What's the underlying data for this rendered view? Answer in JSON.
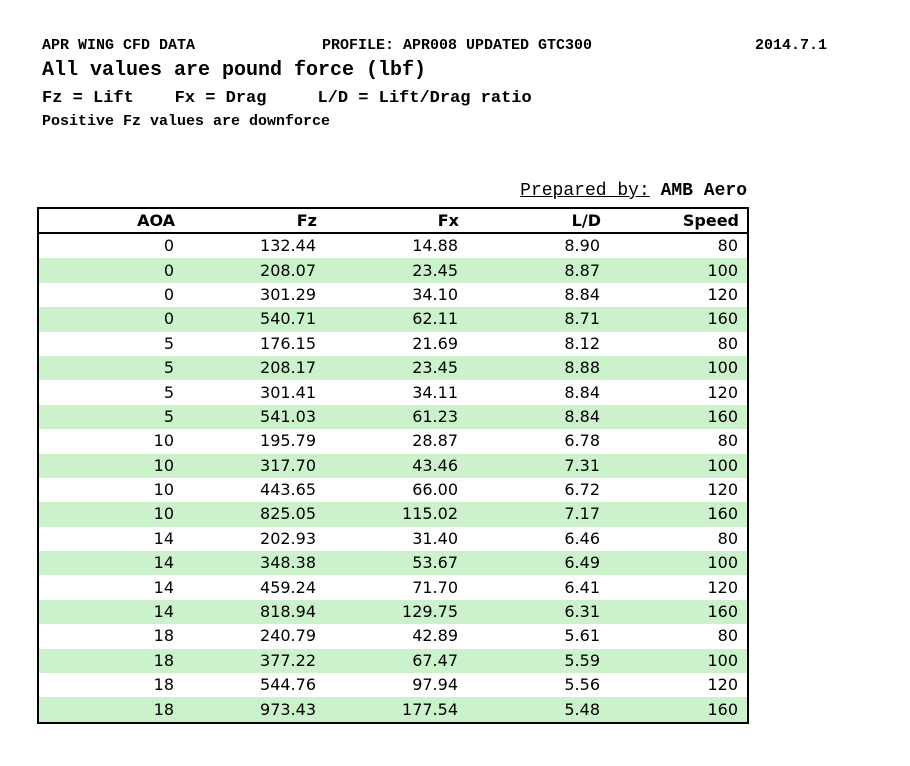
{
  "header": {
    "line1_left": "APR WING CFD DATA",
    "line1_mid": "PROFILE: APR008 UPDATED GTC300",
    "line1_right": "2014.7.1",
    "line2": "All values are pound force (lbf)",
    "line3": "Fz = Lift    Fx = Drag     L/D = Lift/Drag ratio",
    "line4": "Positive Fz values are downforce"
  },
  "prepared_by": {
    "label": "Prepared by:",
    "value": "AMB Aero"
  },
  "table": {
    "columns": [
      "AOA",
      "Fz",
      "Fx",
      "L/D",
      "Speed"
    ],
    "rows": [
      [
        "0",
        "132.44",
        "14.88",
        "8.90",
        "80"
      ],
      [
        "0",
        "208.07",
        "23.45",
        "8.87",
        "100"
      ],
      [
        "0",
        "301.29",
        "34.10",
        "8.84",
        "120"
      ],
      [
        "0",
        "540.71",
        "62.11",
        "8.71",
        "160"
      ],
      [
        "5",
        "176.15",
        "21.69",
        "8.12",
        "80"
      ],
      [
        "5",
        "208.17",
        "23.45",
        "8.88",
        "100"
      ],
      [
        "5",
        "301.41",
        "34.11",
        "8.84",
        "120"
      ],
      [
        "5",
        "541.03",
        "61.23",
        "8.84",
        "160"
      ],
      [
        "10",
        "195.79",
        "28.87",
        "6.78",
        "80"
      ],
      [
        "10",
        "317.70",
        "43.46",
        "7.31",
        "100"
      ],
      [
        "10",
        "443.65",
        "66.00",
        "6.72",
        "120"
      ],
      [
        "10",
        "825.05",
        "115.02",
        "7.17",
        "160"
      ],
      [
        "14",
        "202.93",
        "31.40",
        "6.46",
        "80"
      ],
      [
        "14",
        "348.38",
        "53.67",
        "6.49",
        "100"
      ],
      [
        "14",
        "459.24",
        "71.70",
        "6.41",
        "120"
      ],
      [
        "14",
        "818.94",
        "129.75",
        "6.31",
        "160"
      ],
      [
        "18",
        "240.79",
        "42.89",
        "5.61",
        "80"
      ],
      [
        "18",
        "377.22",
        "67.47",
        "5.59",
        "100"
      ],
      [
        "18",
        "544.76",
        "97.94",
        "5.56",
        "120"
      ],
      [
        "18",
        "973.43",
        "177.54",
        "5.48",
        "160"
      ]
    ]
  },
  "colors": {
    "row_alternate_green": "#ccf2cc",
    "border": "#000000",
    "text": "#000000",
    "background": "#ffffff"
  }
}
